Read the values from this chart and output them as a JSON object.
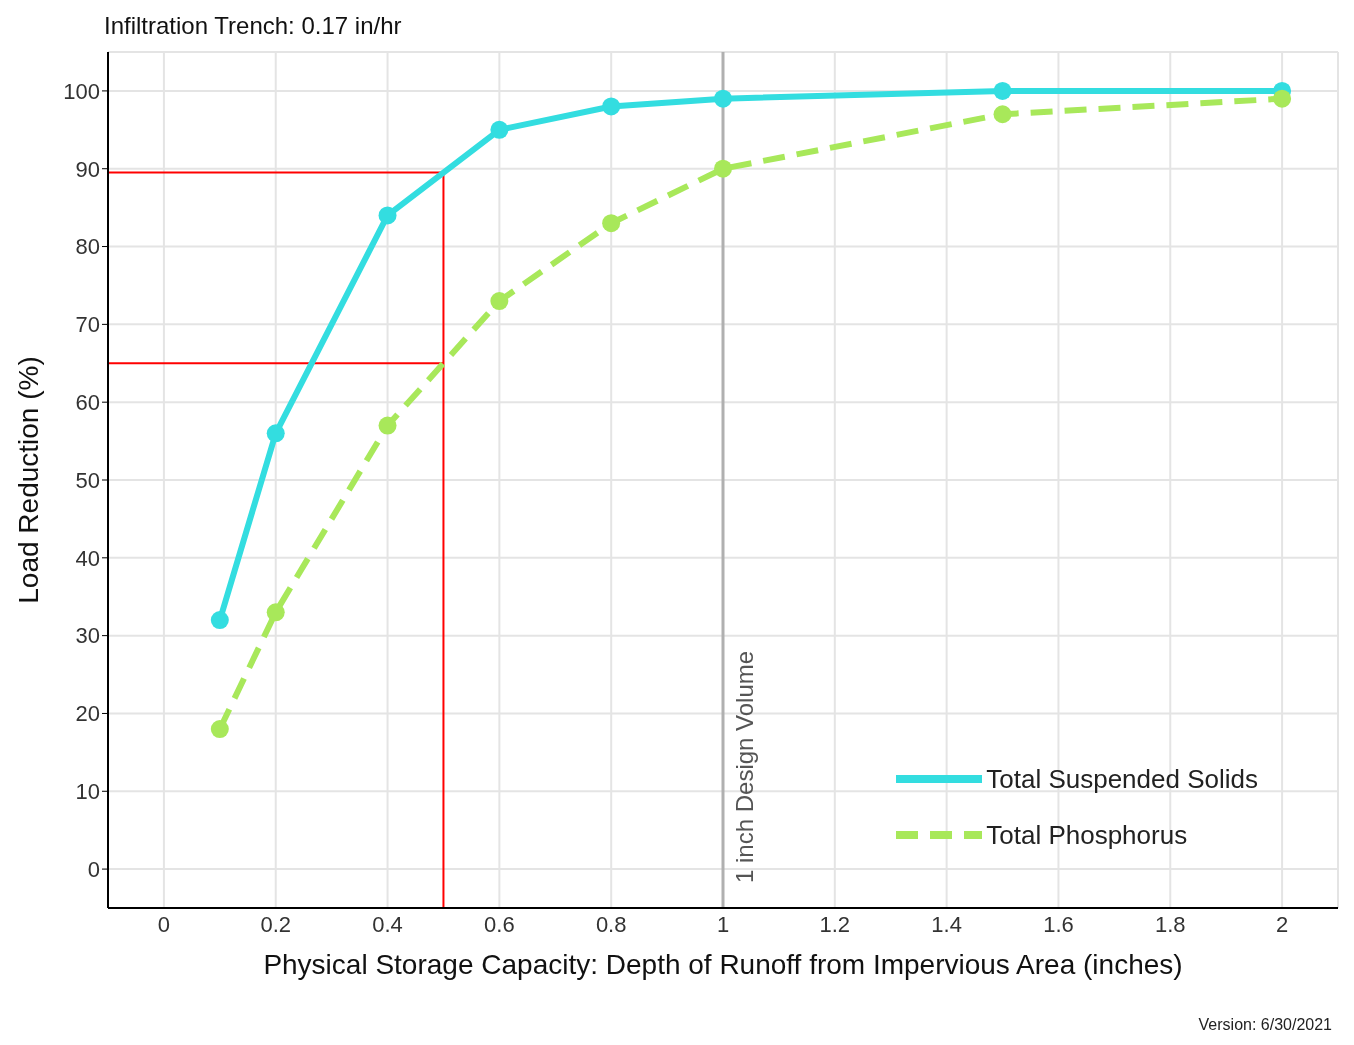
{
  "chart_data": {
    "type": "line",
    "title": "Infiltration Trench: 0.17 in/hr",
    "xlabel": "Physical Storage Capacity: Depth of Runoff from Impervious Area (inches)",
    "ylabel": "Load Reduction (%)",
    "x": [
      0.1,
      0.2,
      0.4,
      0.6,
      0.8,
      1,
      1.5,
      2
    ],
    "series": [
      {
        "name": "Total Suspended Solids",
        "color": "#33dde0",
        "values": [
          32,
          56,
          84,
          95,
          98,
          99,
          100,
          100
        ],
        "line_style": "solid"
      },
      {
        "name": "Total Phosphorus",
        "color": "#a8e85a",
        "values": [
          18,
          33,
          57,
          73,
          83,
          90,
          97,
          99
        ],
        "line_style": "dashed"
      }
    ],
    "xlim": [
      -0.1,
      2.1
    ],
    "xticks": [
      0,
      0.2,
      0.4,
      0.6,
      0.8,
      1,
      1.2,
      1.4,
      1.6,
      1.8,
      2
    ],
    "ylim": [
      -5,
      105
    ],
    "yticks": [
      0,
      10,
      20,
      30,
      40,
      50,
      60,
      70,
      80,
      90,
      100
    ],
    "grid": true,
    "legend": "bottom right",
    "marker": "circle",
    "ref_lines": [
      {
        "axis": "x",
        "value": 1,
        "label": "1 inch Design Volume",
        "color": "#b0b0b0"
      },
      {
        "axis": "x",
        "value": 0.5,
        "color": "#ff0000"
      },
      {
        "axis": "y",
        "value": 89.5,
        "color": "#ff0000"
      },
      {
        "axis": "y",
        "value": 65,
        "color": "#ff0000"
      }
    ],
    "annotations": [
      "Version: 6/30/2021"
    ]
  }
}
